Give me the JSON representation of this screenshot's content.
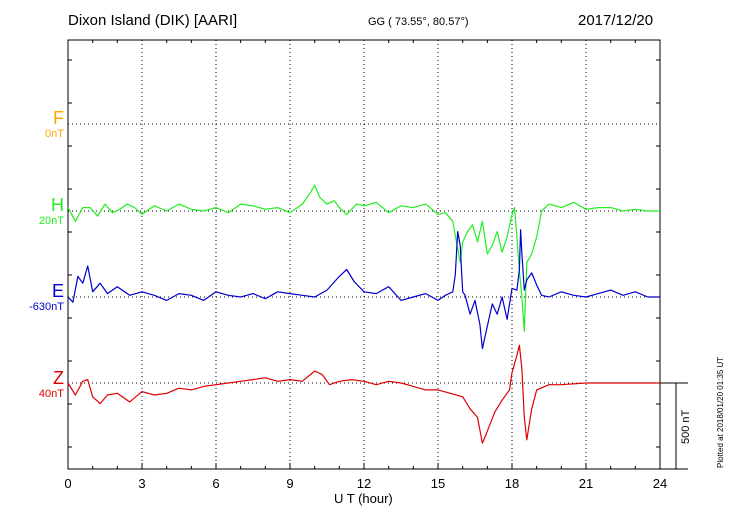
{
  "header": {
    "station": "Dixon Island (DIK)  [AARI]",
    "coords": "GG ( 73.55°,  80.57°)",
    "date": "2017/12/20"
  },
  "footer": {
    "xlabel": "U T (hour)",
    "scale_label": "500 nT",
    "plotted": "Plotted at 2018/01/20 01:35 UT"
  },
  "colors": {
    "F": "#ffa500",
    "H": "#22ee22",
    "E": "#0000cc",
    "Z": "#dd0000",
    "axis": "#000000"
  },
  "chart_data": {
    "type": "line",
    "title": "Dixon Island (DIK)  [AARI]",
    "xlabel": "U T (hour)",
    "x_ticks": [
      0,
      3,
      6,
      9,
      12,
      15,
      18,
      21,
      24
    ],
    "xlim": [
      0,
      24
    ],
    "scale_bar_nT": 500,
    "grid": true,
    "series": [
      {
        "key": "F",
        "name": "F",
        "baseline_label": "0nT",
        "baseline": 0,
        "x": [],
        "y": []
      },
      {
        "key": "H",
        "name": "H",
        "baseline_label": "20nT",
        "baseline": 20,
        "x": [
          0,
          0.3,
          0.6,
          0.9,
          1.2,
          1.5,
          1.8,
          2.1,
          2.4,
          2.7,
          3.0,
          3.5,
          4.0,
          4.5,
          5.0,
          5.5,
          6.0,
          6.5,
          7.0,
          7.5,
          8.0,
          8.5,
          9.0,
          9.5,
          9.8,
          10.0,
          10.2,
          10.5,
          10.8,
          11.0,
          11.3,
          11.7,
          12.0,
          12.5,
          13.0,
          13.5,
          14.0,
          14.5,
          15.0,
          15.3,
          15.6,
          15.8,
          15.9,
          16.0,
          16.2,
          16.4,
          16.6,
          16.8,
          17.0,
          17.2,
          17.4,
          17.6,
          17.8,
          18.0,
          18.1,
          18.2,
          18.3,
          18.4,
          18.5,
          18.6,
          18.8,
          19.0,
          19.2,
          19.5,
          20.0,
          20.5,
          21.0,
          21.5,
          22.0,
          22.5,
          23.0,
          23.5,
          24.0
        ],
        "y": [
          20,
          -60,
          20,
          20,
          -30,
          40,
          -10,
          10,
          40,
          20,
          -20,
          30,
          0,
          40,
          10,
          0,
          20,
          -10,
          40,
          30,
          10,
          20,
          -10,
          40,
          100,
          150,
          80,
          40,
          60,
          20,
          -20,
          40,
          30,
          50,
          -10,
          30,
          20,
          40,
          -20,
          -10,
          -60,
          -220,
          -300,
          -180,
          -120,
          -80,
          -180,
          -60,
          -250,
          -200,
          -120,
          -240,
          -150,
          -20,
          20,
          -150,
          -350,
          -500,
          -700,
          -300,
          -250,
          -150,
          0,
          40,
          20,
          50,
          10,
          20,
          20,
          0,
          10,
          0,
          0
        ]
      },
      {
        "key": "E",
        "name": "E",
        "baseline_label": "-630nT",
        "baseline": -630,
        "x": [
          0,
          0.2,
          0.4,
          0.6,
          0.8,
          1.0,
          1.3,
          1.6,
          2.0,
          2.5,
          3.0,
          3.5,
          4.0,
          4.5,
          5.0,
          5.5,
          6.0,
          6.5,
          7.0,
          7.5,
          8.0,
          8.5,
          9.0,
          9.5,
          10.0,
          10.5,
          11.0,
          11.3,
          11.6,
          12.0,
          12.5,
          13.0,
          13.5,
          14.0,
          14.5,
          15.0,
          15.3,
          15.6,
          15.7,
          15.8,
          15.9,
          16.0,
          16.1,
          16.3,
          16.5,
          16.7,
          16.8,
          17.0,
          17.2,
          17.4,
          17.6,
          17.8,
          18.0,
          18.2,
          18.3,
          18.35,
          18.4,
          18.5,
          18.6,
          18.8,
          19.0,
          19.2,
          19.5,
          20.0,
          20.5,
          21.0,
          21.5,
          22.0,
          22.5,
          23.0,
          23.5,
          24.0
        ],
        "y": [
          0,
          -30,
          120,
          80,
          180,
          30,
          80,
          20,
          60,
          10,
          30,
          10,
          -20,
          20,
          10,
          -20,
          30,
          10,
          0,
          20,
          -10,
          30,
          20,
          10,
          0,
          40,
          120,
          160,
          90,
          30,
          20,
          60,
          -20,
          0,
          20,
          -20,
          10,
          30,
          130,
          380,
          300,
          30,
          10,
          -100,
          -20,
          -160,
          -300,
          -170,
          -40,
          -100,
          0,
          -130,
          50,
          40,
          160,
          390,
          250,
          40,
          100,
          140,
          70,
          10,
          0,
          30,
          10,
          0,
          20,
          40,
          10,
          30,
          0,
          0
        ]
      },
      {
        "key": "Z",
        "name": "Z",
        "baseline_label": "40nT",
        "baseline": 40,
        "x": [
          0,
          0.3,
          0.6,
          0.8,
          1.0,
          1.3,
          1.6,
          2.0,
          2.5,
          3.0,
          3.5,
          4.0,
          4.5,
          5.0,
          5.5,
          6.0,
          6.5,
          7.0,
          7.5,
          8.0,
          8.5,
          9.0,
          9.5,
          10.0,
          10.3,
          10.6,
          11.0,
          11.5,
          12.0,
          12.5,
          13.0,
          13.5,
          14.0,
          14.5,
          15.0,
          15.5,
          16.0,
          16.3,
          16.6,
          16.8,
          17.0,
          17.3,
          17.6,
          17.9,
          18.0,
          18.2,
          18.3,
          18.4,
          18.5,
          18.6,
          18.8,
          19.0,
          19.5,
          20.0,
          21.0,
          22.0,
          23.0,
          24.0
        ],
        "y": [
          0,
          -70,
          10,
          20,
          -80,
          -120,
          -70,
          -60,
          -110,
          -50,
          -70,
          -60,
          -30,
          -40,
          -20,
          -10,
          0,
          10,
          20,
          30,
          10,
          20,
          10,
          70,
          50,
          -10,
          10,
          20,
          10,
          -10,
          10,
          0,
          -20,
          -40,
          -40,
          -60,
          -80,
          -150,
          -200,
          -350,
          -280,
          -170,
          -100,
          -40,
          60,
          160,
          220,
          80,
          -200,
          -330,
          -150,
          -40,
          -10,
          -10,
          0,
          0,
          0,
          0
        ]
      }
    ]
  }
}
